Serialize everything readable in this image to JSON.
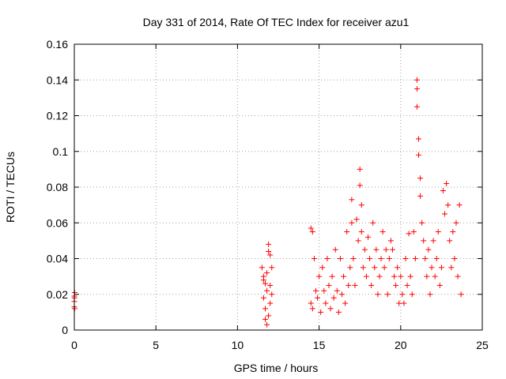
{
  "chart_data": {
    "type": "scatter",
    "title": "Day 331 of 2014, Rate Of TEC Index for receiver azu1",
    "xlabel": "GPS time / hours",
    "ylabel": "ROTI / TECUs",
    "xlim": [
      0,
      25
    ],
    "ylim": [
      0,
      0.16
    ],
    "xticks": [
      "0",
      "5",
      "10",
      "15",
      "20",
      "25"
    ],
    "yticks": [
      "0",
      "0.02",
      "0.04",
      "0.06",
      "0.08",
      "0.1",
      "0.12",
      "0.14",
      "0.16"
    ],
    "grid": true,
    "marker": "+",
    "marker_color": "#ff0000",
    "series": [
      {
        "points": [
          [
            0.0,
            0.013
          ],
          [
            0.0,
            0.016
          ],
          [
            0.0,
            0.019
          ],
          [
            0.02,
            0.021
          ],
          [
            0.02,
            0.012
          ],
          [
            0.01,
            0.018
          ],
          [
            11.5,
            0.035
          ],
          [
            11.6,
            0.028
          ],
          [
            11.6,
            0.018
          ],
          [
            11.7,
            0.012
          ],
          [
            11.7,
            0.006
          ],
          [
            11.8,
            0.022
          ],
          [
            11.8,
            0.032
          ],
          [
            11.9,
            0.044
          ],
          [
            11.9,
            0.048
          ],
          [
            12.0,
            0.042
          ],
          [
            12.0,
            0.025
          ],
          [
            12.0,
            0.015
          ],
          [
            11.9,
            0.008
          ],
          [
            11.8,
            0.003
          ],
          [
            12.1,
            0.035
          ],
          [
            12.1,
            0.02
          ],
          [
            11.6,
            0.03
          ],
          [
            11.7,
            0.026
          ],
          [
            14.5,
            0.057
          ],
          [
            14.6,
            0.055
          ],
          [
            14.5,
            0.015
          ],
          [
            14.6,
            0.012
          ],
          [
            14.7,
            0.04
          ],
          [
            14.8,
            0.022
          ],
          [
            14.9,
            0.018
          ],
          [
            15.0,
            0.03
          ],
          [
            15.1,
            0.01
          ],
          [
            15.2,
            0.035
          ],
          [
            15.3,
            0.022
          ],
          [
            15.4,
            0.015
          ],
          [
            15.5,
            0.04
          ],
          [
            15.6,
            0.025
          ],
          [
            15.7,
            0.012
          ],
          [
            15.8,
            0.03
          ],
          [
            15.9,
            0.018
          ],
          [
            16.0,
            0.045
          ],
          [
            16.1,
            0.022
          ],
          [
            16.2,
            0.01
          ],
          [
            16.3,
            0.04
          ],
          [
            16.4,
            0.02
          ],
          [
            16.5,
            0.03
          ],
          [
            16.6,
            0.015
          ],
          [
            16.7,
            0.055
          ],
          [
            16.8,
            0.025
          ],
          [
            16.9,
            0.035
          ],
          [
            17.0,
            0.073
          ],
          [
            17.0,
            0.06
          ],
          [
            17.1,
            0.04
          ],
          [
            17.2,
            0.025
          ],
          [
            17.3,
            0.062
          ],
          [
            17.4,
            0.05
          ],
          [
            17.5,
            0.09
          ],
          [
            17.5,
            0.081
          ],
          [
            17.6,
            0.07
          ],
          [
            17.6,
            0.055
          ],
          [
            17.7,
            0.035
          ],
          [
            17.8,
            0.045
          ],
          [
            17.9,
            0.03
          ],
          [
            18.0,
            0.052
          ],
          [
            18.1,
            0.04
          ],
          [
            18.2,
            0.025
          ],
          [
            18.3,
            0.06
          ],
          [
            18.4,
            0.035
          ],
          [
            18.5,
            0.045
          ],
          [
            18.6,
            0.02
          ],
          [
            18.7,
            0.03
          ],
          [
            18.8,
            0.04
          ],
          [
            18.9,
            0.055
          ],
          [
            19.0,
            0.035
          ],
          [
            19.1,
            0.045
          ],
          [
            19.2,
            0.02
          ],
          [
            19.3,
            0.04
          ],
          [
            19.4,
            0.05
          ],
          [
            19.5,
            0.045
          ],
          [
            19.6,
            0.03
          ],
          [
            19.7,
            0.025
          ],
          [
            19.8,
            0.035
          ],
          [
            19.9,
            0.015
          ],
          [
            20.0,
            0.03
          ],
          [
            20.1,
            0.02
          ],
          [
            20.2,
            0.015
          ],
          [
            20.3,
            0.04
          ],
          [
            20.4,
            0.025
          ],
          [
            20.5,
            0.054
          ],
          [
            20.6,
            0.03
          ],
          [
            20.7,
            0.02
          ],
          [
            20.8,
            0.055
          ],
          [
            20.9,
            0.04
          ],
          [
            21.0,
            0.14
          ],
          [
            21.0,
            0.135
          ],
          [
            21.0,
            0.125
          ],
          [
            21.1,
            0.107
          ],
          [
            21.1,
            0.098
          ],
          [
            21.2,
            0.085
          ],
          [
            21.2,
            0.075
          ],
          [
            21.3,
            0.06
          ],
          [
            21.4,
            0.05
          ],
          [
            21.5,
            0.04
          ],
          [
            21.6,
            0.03
          ],
          [
            21.7,
            0.045
          ],
          [
            21.8,
            0.02
          ],
          [
            21.9,
            0.035
          ],
          [
            22.0,
            0.05
          ],
          [
            22.1,
            0.03
          ],
          [
            22.2,
            0.04
          ],
          [
            22.3,
            0.055
          ],
          [
            22.4,
            0.025
          ],
          [
            22.5,
            0.035
          ],
          [
            22.6,
            0.078
          ],
          [
            22.7,
            0.065
          ],
          [
            22.8,
            0.082
          ],
          [
            22.9,
            0.07
          ],
          [
            23.0,
            0.05
          ],
          [
            23.1,
            0.035
          ],
          [
            23.2,
            0.055
          ],
          [
            23.3,
            0.04
          ],
          [
            23.4,
            0.06
          ],
          [
            23.5,
            0.03
          ],
          [
            23.6,
            0.07
          ],
          [
            23.7,
            0.02
          ]
        ]
      }
    ]
  }
}
